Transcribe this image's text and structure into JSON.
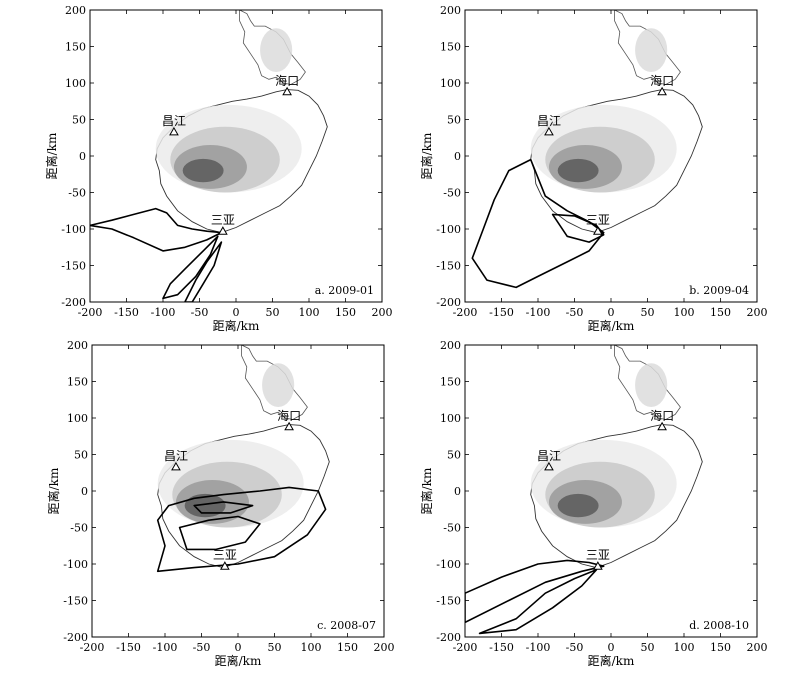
{
  "chart_data": {
    "type": "map",
    "x_unit_label": "距离/km",
    "y_unit_label": "距离/km",
    "xlim": [
      -200,
      200
    ],
    "ylim": [
      -200,
      200
    ],
    "ticks": [
      -200,
      -150,
      -100,
      -50,
      0,
      50,
      100,
      150,
      200
    ],
    "stations": [
      {
        "name": "海口",
        "x": 70,
        "y": 88
      },
      {
        "name": "昌江",
        "x": -85,
        "y": 33
      },
      {
        "name": "三亚",
        "x": -18,
        "y": -103
      }
    ],
    "coastline": [
      [
        -105,
        -20
      ],
      [
        -110,
        -5
      ],
      [
        -108,
        10
      ],
      [
        -100,
        25
      ],
      [
        -85,
        40
      ],
      [
        -65,
        55
      ],
      [
        -45,
        65
      ],
      [
        -25,
        70
      ],
      [
        -5,
        75
      ],
      [
        15,
        78
      ],
      [
        35,
        82
      ],
      [
        55,
        88
      ],
      [
        70,
        91
      ],
      [
        85,
        90
      ],
      [
        100,
        82
      ],
      [
        112,
        70
      ],
      [
        120,
        55
      ],
      [
        125,
        40
      ],
      [
        118,
        20
      ],
      [
        110,
        0
      ],
      [
        100,
        -20
      ],
      [
        90,
        -40
      ],
      [
        75,
        -55
      ],
      [
        60,
        -68
      ],
      [
        40,
        -78
      ],
      [
        20,
        -88
      ],
      [
        0,
        -98
      ],
      [
        -20,
        -105
      ],
      [
        -40,
        -100
      ],
      [
        -60,
        -90
      ],
      [
        -80,
        -75
      ],
      [
        -95,
        -55
      ],
      [
        -103,
        -38
      ],
      [
        -105,
        -20
      ]
    ],
    "leizhou": [
      [
        5,
        200
      ],
      [
        15,
        195
      ],
      [
        20,
        185
      ],
      [
        25,
        178
      ],
      [
        40,
        178
      ],
      [
        55,
        170
      ],
      [
        65,
        160
      ],
      [
        70,
        150
      ],
      [
        75,
        140
      ],
      [
        85,
        128
      ],
      [
        95,
        115
      ],
      [
        88,
        105
      ],
      [
        75,
        98
      ],
      [
        65,
        100
      ],
      [
        55,
        108
      ],
      [
        45,
        105
      ],
      [
        35,
        110
      ],
      [
        30,
        125
      ],
      [
        20,
        140
      ],
      [
        10,
        155
      ],
      [
        12,
        170
      ],
      [
        5,
        185
      ],
      [
        5,
        200
      ]
    ],
    "terrain": [
      {
        "shade": "#ebebeb",
        "cx": -10,
        "cy": 10,
        "rx": 100,
        "ry": 60
      },
      {
        "shade": "#c8c8c8",
        "cx": -15,
        "cy": -5,
        "rx": 75,
        "ry": 45
      },
      {
        "shade": "#9a9a9a",
        "cx": -35,
        "cy": -15,
        "rx": 50,
        "ry": 30
      },
      {
        "shade": "#5a5a5a",
        "cx": -45,
        "cy": -20,
        "rx": 28,
        "ry": 16
      },
      {
        "shade": "#dcdcdc",
        "cx": 55,
        "cy": 145,
        "rx": 22,
        "ry": 30
      }
    ],
    "panels": [
      {
        "label": "a. 2009-01",
        "contours": [
          [
            [
              -200,
              -95
            ],
            [
              -170,
              -88
            ],
            [
              -140,
              -80
            ],
            [
              -110,
              -72
            ],
            [
              -95,
              -78
            ],
            [
              -80,
              -95
            ],
            [
              -60,
              -100
            ],
            [
              -40,
              -103
            ],
            [
              -20,
              -105
            ],
            [
              -40,
              -115
            ],
            [
              -70,
              -125
            ],
            [
              -100,
              -130
            ],
            [
              -140,
              -112
            ],
            [
              -170,
              -100
            ],
            [
              -200,
              -95
            ]
          ],
          [
            [
              -25,
              -110
            ],
            [
              -45,
              -130
            ],
            [
              -70,
              -155
            ],
            [
              -90,
              -175
            ],
            [
              -100,
              -195
            ],
            [
              -80,
              -190
            ],
            [
              -55,
              -165
            ],
            [
              -35,
              -135
            ],
            [
              -25,
              -110
            ]
          ],
          [
            [
              -20,
              -118
            ],
            [
              -40,
              -145
            ],
            [
              -55,
              -170
            ],
            [
              -70,
              -200
            ],
            [
              -60,
              -200
            ],
            [
              -45,
              -175
            ],
            [
              -30,
              -150
            ],
            [
              -20,
              -118
            ]
          ]
        ]
      },
      {
        "label": "b. 2009-04",
        "contours": [
          [
            [
              -110,
              -5
            ],
            [
              -140,
              -20
            ],
            [
              -160,
              -60
            ],
            [
              -175,
              -100
            ],
            [
              -190,
              -140
            ],
            [
              -170,
              -170
            ],
            [
              -130,
              -180
            ],
            [
              -100,
              -165
            ],
            [
              -60,
              -145
            ],
            [
              -30,
              -130
            ],
            [
              -10,
              -105
            ],
            [
              -30,
              -90
            ],
            [
              -60,
              -75
            ],
            [
              -90,
              -55
            ],
            [
              -110,
              -5
            ]
          ],
          [
            [
              -80,
              -80
            ],
            [
              -50,
              -82
            ],
            [
              -20,
              -95
            ],
            [
              -10,
              -108
            ],
            [
              -30,
              -118
            ],
            [
              -60,
              -110
            ],
            [
              -80,
              -80
            ]
          ]
        ]
      },
      {
        "label": "c. 2008-07",
        "contours": [
          [
            [
              -110,
              -40
            ],
            [
              -95,
              -20
            ],
            [
              -60,
              -10
            ],
            [
              -20,
              -5
            ],
            [
              30,
              0
            ],
            [
              70,
              5
            ],
            [
              110,
              0
            ],
            [
              120,
              -25
            ],
            [
              95,
              -60
            ],
            [
              50,
              -90
            ],
            [
              0,
              -100
            ],
            [
              -60,
              -105
            ],
            [
              -110,
              -110
            ],
            [
              -100,
              -75
            ],
            [
              -110,
              -40
            ]
          ],
          [
            [
              -80,
              -50
            ],
            [
              -40,
              -40
            ],
            [
              0,
              -35
            ],
            [
              30,
              -45
            ],
            [
              10,
              -70
            ],
            [
              -30,
              -80
            ],
            [
              -70,
              -80
            ],
            [
              -80,
              -50
            ]
          ],
          [
            [
              -60,
              -20
            ],
            [
              -20,
              -15
            ],
            [
              20,
              -20
            ],
            [
              -10,
              -30
            ],
            [
              -50,
              -30
            ],
            [
              -60,
              -20
            ]
          ]
        ]
      },
      {
        "label": "d. 2008-10",
        "contours": [
          [
            [
              -200,
              -140
            ],
            [
              -150,
              -118
            ],
            [
              -100,
              -100
            ],
            [
              -60,
              -95
            ],
            [
              -30,
              -98
            ],
            [
              -10,
              -103
            ],
            [
              -40,
              -110
            ],
            [
              -90,
              -125
            ],
            [
              -140,
              -150
            ],
            [
              -200,
              -180
            ],
            [
              -200,
              -140
            ]
          ],
          [
            [
              -20,
              -108
            ],
            [
              -50,
              -120
            ],
            [
              -90,
              -140
            ],
            [
              -130,
              -175
            ],
            [
              -180,
              -195
            ],
            [
              -130,
              -190
            ],
            [
              -80,
              -160
            ],
            [
              -40,
              -130
            ],
            [
              -20,
              -108
            ]
          ]
        ]
      }
    ]
  }
}
